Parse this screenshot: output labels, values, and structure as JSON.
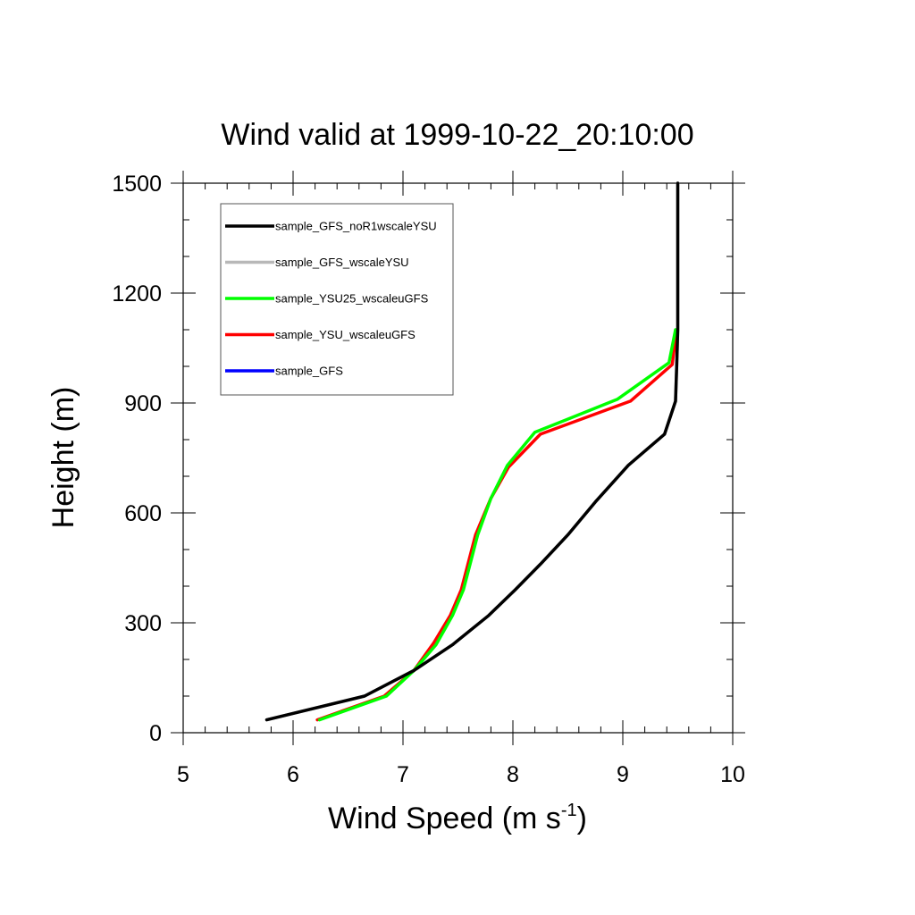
{
  "chart_data": {
    "type": "line",
    "title": "Wind valid at 1999-10-22_20:10:00",
    "xlabel": "Wind Speed (m s",
    "xlabel_superscript": "-1",
    "xlabel_suffix": ")",
    "ylabel": "Height (m)",
    "xlim": [
      5,
      10
    ],
    "ylim": [
      0,
      1500
    ],
    "x_ticks": [
      5,
      6,
      7,
      8,
      9,
      10
    ],
    "y_ticks": [
      0,
      300,
      600,
      900,
      1200,
      1500
    ],
    "grid": false,
    "legend_position": "top-left",
    "series": [
      {
        "name": "sample_GFS_noR1wscaleYSU",
        "color": "#000000",
        "points": [
          [
            5.76,
            35
          ],
          [
            6.65,
            100
          ],
          [
            7.1,
            170
          ],
          [
            7.45,
            240
          ],
          [
            7.78,
            320
          ],
          [
            8.02,
            390
          ],
          [
            8.25,
            460
          ],
          [
            8.5,
            540
          ],
          [
            8.75,
            630
          ],
          [
            9.05,
            730
          ],
          [
            9.38,
            815
          ],
          [
            9.48,
            905
          ],
          [
            9.49,
            1000
          ],
          [
            9.5,
            1100
          ],
          [
            9.5,
            1500
          ]
        ]
      },
      {
        "name": "sample_GFS_wscaleYSU",
        "color": "#b8b8b8",
        "points": [
          [
            5.76,
            35
          ],
          [
            6.65,
            100
          ],
          [
            7.1,
            170
          ],
          [
            7.45,
            240
          ],
          [
            7.78,
            320
          ],
          [
            8.02,
            390
          ],
          [
            8.25,
            460
          ],
          [
            8.5,
            540
          ],
          [
            8.75,
            630
          ],
          [
            9.05,
            730
          ],
          [
            9.38,
            815
          ],
          [
            9.48,
            905
          ],
          [
            9.49,
            1000
          ],
          [
            9.5,
            1100
          ],
          [
            9.5,
            1500
          ]
        ]
      },
      {
        "name": "sample_YSU25_wscaleuGFS",
        "color": "#00ff00",
        "points": [
          [
            6.24,
            35
          ],
          [
            6.85,
            100
          ],
          [
            7.1,
            170
          ],
          [
            7.3,
            240
          ],
          [
            7.45,
            320
          ],
          [
            7.55,
            390
          ],
          [
            7.68,
            540
          ],
          [
            7.8,
            640
          ],
          [
            7.95,
            730
          ],
          [
            8.2,
            820
          ],
          [
            8.95,
            910
          ],
          [
            9.42,
            1010
          ],
          [
            9.48,
            1100
          ]
        ]
      },
      {
        "name": "sample_YSU_wscaleuGFS",
        "color": "#ff0000",
        "points": [
          [
            6.22,
            35
          ],
          [
            6.83,
            100
          ],
          [
            7.1,
            170
          ],
          [
            7.28,
            245
          ],
          [
            7.43,
            320
          ],
          [
            7.53,
            390
          ],
          [
            7.66,
            540
          ],
          [
            7.8,
            640
          ],
          [
            7.96,
            725
          ],
          [
            8.25,
            815
          ],
          [
            9.07,
            905
          ],
          [
            9.45,
            1005
          ],
          [
            9.49,
            1100
          ]
        ]
      },
      {
        "name": "sample_GFS",
        "color": "#0000ff",
        "points": []
      }
    ]
  }
}
